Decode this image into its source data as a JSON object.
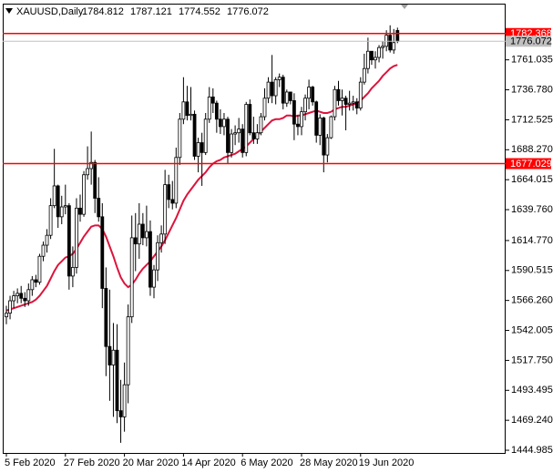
{
  "chart_data": {
    "type": "candlestick",
    "title": "XAUUSD,Daily",
    "categories": [
      "5 Feb 2020",
      null,
      null,
      null,
      null,
      null,
      null,
      null,
      null,
      null,
      null,
      null,
      null,
      null,
      null,
      null,
      "27 Feb 2020",
      null,
      null,
      null,
      null,
      null,
      null,
      null,
      null,
      null,
      null,
      null,
      null,
      null,
      null,
      null,
      "20 Mar 2020",
      null,
      null,
      null,
      null,
      null,
      null,
      null,
      null,
      null,
      null,
      null,
      null,
      null,
      null,
      null,
      "14 Apr 2020",
      null,
      null,
      null,
      null,
      null,
      null,
      null,
      null,
      null,
      null,
      null,
      null,
      null,
      null,
      null,
      "6 May 2020",
      null,
      null,
      null,
      null,
      null,
      null,
      null,
      null,
      null,
      null,
      null,
      null,
      null,
      null,
      null,
      "28 May 2020",
      null,
      null,
      null,
      null,
      null,
      null,
      null,
      null,
      null,
      null,
      null,
      null,
      null,
      null,
      null,
      "19 Jun 2020",
      null,
      null,
      null,
      null,
      null,
      null,
      null,
      null,
      null,
      null
    ],
    "open": [
      1553,
      1556,
      1566,
      1570,
      1572,
      1568,
      1566,
      1575,
      1583,
      1581,
      1602,
      1611,
      1619,
      1643,
      1659,
      1634,
      1642,
      1643,
      1586,
      1593,
      1641,
      1636,
      1668,
      1673,
      1678,
      1649,
      1634,
      1576,
      1529,
      1514,
      1526,
      1477,
      1472,
      1498,
      1553,
      1617,
      1612,
      1628,
      1617,
      1622,
      1577,
      1591,
      1613,
      1620,
      1660,
      1648,
      1645,
      1682,
      1713,
      1727,
      1716,
      1717,
      1683,
      1694,
      1686,
      1713,
      1731,
      1726,
      1713,
      1707,
      1713,
      1686,
      1701,
      1702,
      1705,
      1686,
      1725,
      1702,
      1697,
      1702,
      1715,
      1730,
      1743,
      1732,
      1745,
      1747,
      1726,
      1735,
      1728,
      1709,
      1707,
      1719,
      1730,
      1739,
      1727,
      1700,
      1714,
      1684,
      1698,
      1715,
      1737,
      1728,
      1730,
      1725,
      1726,
      1727,
      1722,
      1743,
      1754,
      1768,
      1761,
      1763,
      1771,
      1772,
      1781,
      1769,
      1784.812
    ],
    "high": [
      1562,
      1570,
      1574,
      1576,
      1578,
      1573,
      1580,
      1586,
      1587,
      1604,
      1614,
      1624,
      1649,
      1689,
      1660,
      1651,
      1660,
      1645,
      1610,
      1649,
      1652,
      1671,
      1691,
      1703,
      1680,
      1666,
      1645,
      1593,
      1575,
      1548,
      1547,
      1502,
      1516,
      1563,
      1635,
      1637,
      1645,
      1637,
      1643,
      1631,
      1595,
      1619,
      1627,
      1672,
      1668,
      1663,
      1690,
      1718,
      1747,
      1740,
      1739,
      1720,
      1698,
      1702,
      1718,
      1739,
      1738,
      1728,
      1721,
      1718,
      1715,
      1705,
      1708,
      1714,
      1709,
      1727,
      1729,
      1715,
      1709,
      1718,
      1738,
      1747,
      1765,
      1747,
      1750,
      1749,
      1737,
      1735,
      1734,
      1716,
      1723,
      1733,
      1745,
      1740,
      1728,
      1717,
      1715,
      1701,
      1716,
      1740,
      1744,
      1737,
      1732,
      1736,
      1732,
      1730,
      1747,
      1766,
      1779,
      1768,
      1768,
      1773,
      1776,
      1785,
      1789,
      1786,
      1787.121
    ],
    "low": [
      1547,
      1551,
      1560,
      1564,
      1564,
      1561,
      1562,
      1570,
      1577,
      1579,
      1598,
      1605,
      1616,
      1641,
      1625,
      1628,
      1636,
      1575,
      1577,
      1588,
      1630,
      1634,
      1664,
      1660,
      1637,
      1630,
      1560,
      1505,
      1485,
      1472,
      1467,
      1451,
      1460,
      1483,
      1548,
      1590,
      1600,
      1611,
      1610,
      1570,
      1568,
      1582,
      1605,
      1612,
      1641,
      1640,
      1641,
      1676,
      1709,
      1712,
      1712,
      1680,
      1670,
      1659,
      1684,
      1710,
      1718,
      1702,
      1701,
      1700,
      1677,
      1682,
      1692,
      1694,
      1682,
      1683,
      1700,
      1693,
      1693,
      1700,
      1712,
      1726,
      1726,
      1725,
      1739,
      1721,
      1723,
      1725,
      1696,
      1700,
      1700,
      1712,
      1721,
      1724,
      1694,
      1692,
      1670,
      1678,
      1697,
      1712,
      1724,
      1716,
      1704,
      1720,
      1720,
      1717,
      1720,
      1741,
      1750,
      1757,
      1754,
      1759,
      1762,
      1768,
      1767,
      1766,
      1774.552
    ],
    "close": [
      1556,
      1566,
      1570,
      1572,
      1568,
      1566,
      1575,
      1583,
      1581,
      1602,
      1611,
      1619,
      1643,
      1659,
      1634,
      1642,
      1643,
      1586,
      1593,
      1641,
      1636,
      1668,
      1673,
      1678,
      1649,
      1634,
      1576,
      1529,
      1514,
      1526,
      1477,
      1472,
      1498,
      1553,
      1617,
      1612,
      1628,
      1617,
      1622,
      1577,
      1591,
      1613,
      1620,
      1660,
      1648,
      1645,
      1682,
      1713,
      1727,
      1716,
      1717,
      1683,
      1694,
      1686,
      1713,
      1731,
      1726,
      1713,
      1707,
      1713,
      1686,
      1701,
      1702,
      1705,
      1686,
      1725,
      1702,
      1697,
      1702,
      1715,
      1730,
      1743,
      1732,
      1745,
      1747,
      1726,
      1735,
      1728,
      1709,
      1707,
      1719,
      1730,
      1739,
      1727,
      1700,
      1714,
      1684,
      1698,
      1715,
      1737,
      1728,
      1730,
      1725,
      1726,
      1727,
      1722,
      1743,
      1754,
      1768,
      1761,
      1763,
      1771,
      1772,
      1781,
      1769,
      1775,
      1776.072
    ],
    "ma": {
      "color": "#dc143c",
      "values": [
        1558,
        1559,
        1560,
        1561,
        1562,
        1563,
        1564,
        1565,
        1567,
        1570,
        1574,
        1578,
        1584,
        1590,
        1595,
        1598,
        1601,
        1602,
        1604,
        1608,
        1613,
        1618,
        1622,
        1626,
        1627,
        1627,
        1624,
        1618,
        1610,
        1602,
        1593,
        1585,
        1580,
        1577,
        1579,
        1583,
        1588,
        1592,
        1595,
        1598,
        1602,
        1606,
        1610,
        1615,
        1621,
        1627,
        1633,
        1640,
        1647,
        1652,
        1656,
        1660,
        1664,
        1667,
        1670,
        1674,
        1677,
        1679,
        1680,
        1682,
        1683,
        1684,
        1685,
        1687,
        1689,
        1691,
        1694,
        1697,
        1700,
        1703,
        1706,
        1709,
        1712,
        1713,
        1713,
        1714,
        1716,
        1716,
        1715,
        1716,
        1716,
        1717,
        1718,
        1719,
        1720,
        1719,
        1718,
        1718,
        1719,
        1721,
        1722,
        1723,
        1723,
        1724,
        1725,
        1726,
        1728,
        1731,
        1734,
        1738,
        1741,
        1744,
        1748,
        1751,
        1754,
        1756,
        1757
      ]
    },
    "hlines": [
      {
        "value": 1782.368,
        "color": "#ff0000"
      },
      {
        "value": 1677.029,
        "color": "#ff0000"
      }
    ],
    "ylim": [
      1442.8,
      1805.8
    ],
    "yticks": [
      1761.035,
      {
        "value": 1736.78,
        "label": "1736.780"
      },
      1712.525,
      {
        "value": 1688.27,
        "label": "1688.270"
      },
      1664.015,
      {
        "value": 1639.76,
        "label": "1639.760"
      },
      {
        "value": 1614.77,
        "label": "1614.770"
      },
      1590.515,
      {
        "value": 1566.26,
        "label": "1566.260"
      },
      1542.005,
      {
        "value": 1517.75,
        "label": "1517.750"
      },
      1493.495,
      {
        "value": 1469.24,
        "label": "1469.240"
      },
      1444.985
    ]
  }
}
